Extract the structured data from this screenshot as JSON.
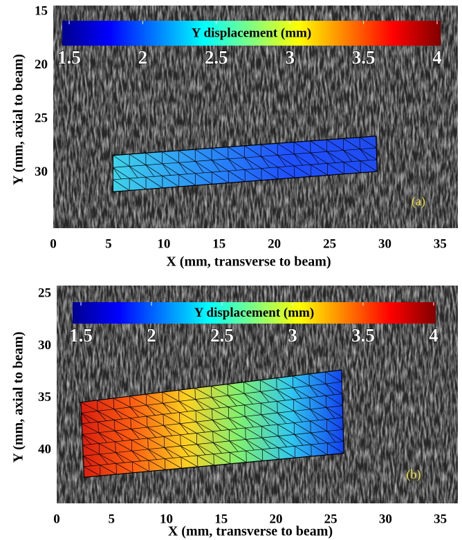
{
  "chart_data": [
    {
      "type": "image",
      "xlabel": "X (mm, transverse to beam)",
      "ylabel": "Y (mm, axial to beam)",
      "xlim": [
        0,
        36.6
      ],
      "xticks": [
        0,
        5,
        10,
        15,
        20,
        25,
        30,
        35
      ],
      "ylim": [
        14.4,
        35.2
      ],
      "yticks": [
        15,
        20,
        25,
        30
      ],
      "annotation": "(a)",
      "mesh": {
        "x": [
          5.4,
          29.2,
          29.3,
          5.4
        ],
        "y": [
          28.4,
          26.6,
          29.9,
          31.8
        ],
        "colors": [
          "#40d4ea",
          "#2a90f8",
          "#1f50ff",
          "#1f4cf0"
        ]
      },
      "colorbar": {
        "label": "Y displacement (mm)",
        "lim": [
          1.5,
          4
        ],
        "ticks": [
          1.5,
          2,
          2.5,
          3,
          3.5,
          4
        ],
        "colormap": [
          "#00008f",
          "#0000ff",
          "#0080ff",
          "#00ffff",
          "#80ff80",
          "#ffff00",
          "#ff8000",
          "#ff0000",
          "#800000"
        ]
      }
    },
    {
      "type": "image",
      "xlabel": "X (mm, transverse to beam)",
      "ylabel": "Y (mm, axial to beam)",
      "xlim": [
        0,
        36.6
      ],
      "xticks": [
        0,
        5,
        10,
        15,
        20,
        25,
        30,
        35
      ],
      "ylim": [
        24.2,
        45.1
      ],
      "yticks": [
        25,
        30,
        35,
        40
      ],
      "annotation": "(b)",
      "mesh": {
        "x": [
          2.2,
          26.0,
          26.2,
          2.5
        ],
        "y": [
          35.4,
          32.3,
          40.3,
          42.6
        ],
        "colors": [
          "#d81c10",
          "#ff6010",
          "#ffd020",
          "#80f070",
          "#30c8f0",
          "#1040f0"
        ]
      },
      "colorbar": {
        "label": "Y displacement (mm)",
        "lim": [
          1.5,
          4
        ],
        "ticks": [
          1.5,
          2,
          2.5,
          3,
          3.5,
          4
        ],
        "colormap": [
          "#00008f",
          "#0000ff",
          "#0080ff",
          "#00ffff",
          "#80ff80",
          "#ffff00",
          "#ff8000",
          "#ff0000",
          "#800000"
        ]
      }
    }
  ]
}
